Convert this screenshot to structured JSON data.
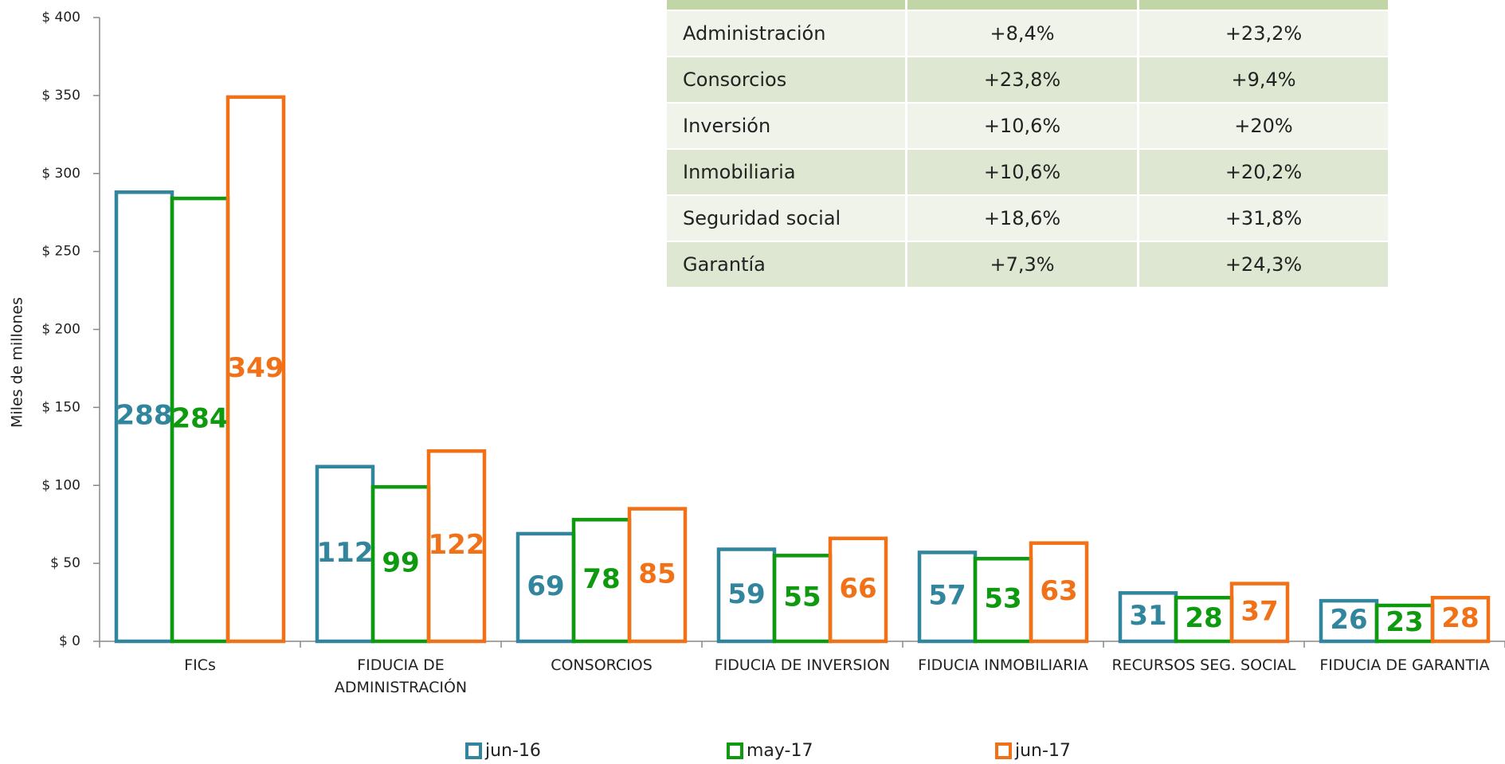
{
  "chart_data": {
    "type": "bar",
    "y_label": "Miles de millones",
    "categories": [
      "FICs",
      "FIDUCIA DE ADMINISTRACIÓN",
      "CONSORCIOS",
      "FIDUCIA DE INVERSION",
      "FIDUCIA INMOBILIARIA",
      "RECURSOS SEG. SOCIAL",
      "FIDUCIA DE GARANTIA"
    ],
    "series": [
      {
        "name": "jun-16",
        "color": "#31859c",
        "values": [
          288,
          112,
          69,
          59,
          57,
          31,
          26
        ]
      },
      {
        "name": "may-17",
        "color": "#0e9a0e",
        "values": [
          284,
          99,
          78,
          55,
          53,
          28,
          23
        ]
      },
      {
        "name": "jun-17",
        "color": "#f07117",
        "values": [
          349,
          122,
          85,
          66,
          63,
          37,
          28
        ]
      }
    ],
    "ylim": [
      0,
      400
    ],
    "yticks": [
      {
        "value": 0,
        "label": "$ 0"
      },
      {
        "value": 50,
        "label": "$ 50"
      },
      {
        "value": 100,
        "label": "$ 100"
      },
      {
        "value": 150,
        "label": "$ 150"
      },
      {
        "value": 200,
        "label": "$ 200"
      },
      {
        "value": 250,
        "label": "$ 250"
      },
      {
        "value": 300,
        "label": "$ 300"
      },
      {
        "value": 350,
        "label": "$ 350"
      },
      {
        "value": 400,
        "label": "$ 400"
      }
    ],
    "grid": false,
    "legend": "bottom"
  },
  "table": {
    "rows": [
      [
        "Administración",
        "+8,4%",
        "+23,2%"
      ],
      [
        "Consorcios",
        "+23,8%",
        "+9,4%"
      ],
      [
        "Inversión",
        "+10,6%",
        "+20%"
      ],
      [
        "Inmobiliaria",
        "+10,6%",
        "+20,2%"
      ],
      [
        "Seguridad social",
        "+18,6%",
        "+31,8%"
      ],
      [
        "Garantía",
        "+7,3%",
        "+24,3%"
      ]
    ]
  }
}
